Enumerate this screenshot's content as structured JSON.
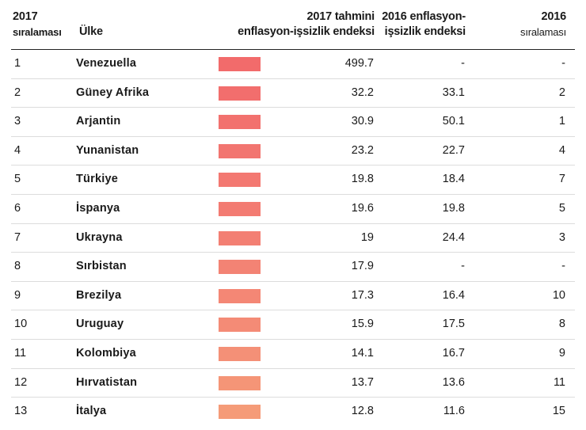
{
  "headers": {
    "rank_2017": [
      "2017",
      "sıralaması"
    ],
    "country": "Ülke",
    "index_2017": [
      "2017 tahmini",
      "enflasyon-işsizlik endeksi"
    ],
    "index_2016": [
      "2016 enflasyon-",
      "işsizlik endeksi"
    ],
    "rank_2016": [
      "2016",
      "sıralaması"
    ]
  },
  "colors": {
    "bar_high": "#f26b6b",
    "bar_low": "#f5a078",
    "rule": "#222222",
    "row_line": "#dcdcdc"
  },
  "rows": [
    {
      "rank_2017": "1",
      "country": "Venezuella",
      "index_2017": "499.7",
      "index_2016": "-",
      "rank_2016": "-",
      "bar_color": "#f26b6b"
    },
    {
      "rank_2017": "2",
      "country": "Güney Afrika",
      "index_2017": "32.2",
      "index_2016": "33.1",
      "rank_2016": "2",
      "bar_color": "#f26e6d"
    },
    {
      "rank_2017": "3",
      "country": "Arjantin",
      "index_2017": "30.9",
      "index_2016": "50.1",
      "rank_2016": "1",
      "bar_color": "#f2716e"
    },
    {
      "rank_2017": "4",
      "country": "Yunanistan",
      "index_2017": "23.2",
      "index_2016": "22.7",
      "rank_2016": "4",
      "bar_color": "#f27570"
    },
    {
      "rank_2017": "5",
      "country": "Türkiye",
      "index_2017": "19.8",
      "index_2016": "18.4",
      "rank_2016": "7",
      "bar_color": "#f37871"
    },
    {
      "rank_2017": "6",
      "country": "İspanya",
      "index_2017": "19.6",
      "index_2016": "19.8",
      "rank_2016": "5",
      "bar_color": "#f37b72"
    },
    {
      "rank_2017": "7",
      "country": "Ukrayna",
      "index_2017": "19",
      "index_2016": "24.4",
      "rank_2016": "3",
      "bar_color": "#f37f73"
    },
    {
      "rank_2017": "8",
      "country": "Sırbistan",
      "index_2017": "17.9",
      "index_2016": "-",
      "rank_2016": "-",
      "bar_color": "#f38374"
    },
    {
      "rank_2017": "9",
      "country": "Brezilya",
      "index_2017": "17.3",
      "index_2016": "16.4",
      "rank_2016": "10",
      "bar_color": "#f48775"
    },
    {
      "rank_2017": "10",
      "country": "Uruguay",
      "index_2017": "15.9",
      "index_2016": "17.5",
      "rank_2016": "8",
      "bar_color": "#f48b76"
    },
    {
      "rank_2017": "11",
      "country": "Kolombiya",
      "index_2017": "14.1",
      "index_2016": "16.7",
      "rank_2016": "9",
      "bar_color": "#f49077"
    },
    {
      "rank_2017": "12",
      "country": "Hırvatistan",
      "index_2017": "13.7",
      "index_2016": "13.6",
      "rank_2016": "11",
      "bar_color": "#f59577"
    },
    {
      "rank_2017": "13",
      "country": "İtalya",
      "index_2017": "12.8",
      "index_2016": "11.6",
      "rank_2016": "15",
      "bar_color": "#f59b78"
    }
  ]
}
